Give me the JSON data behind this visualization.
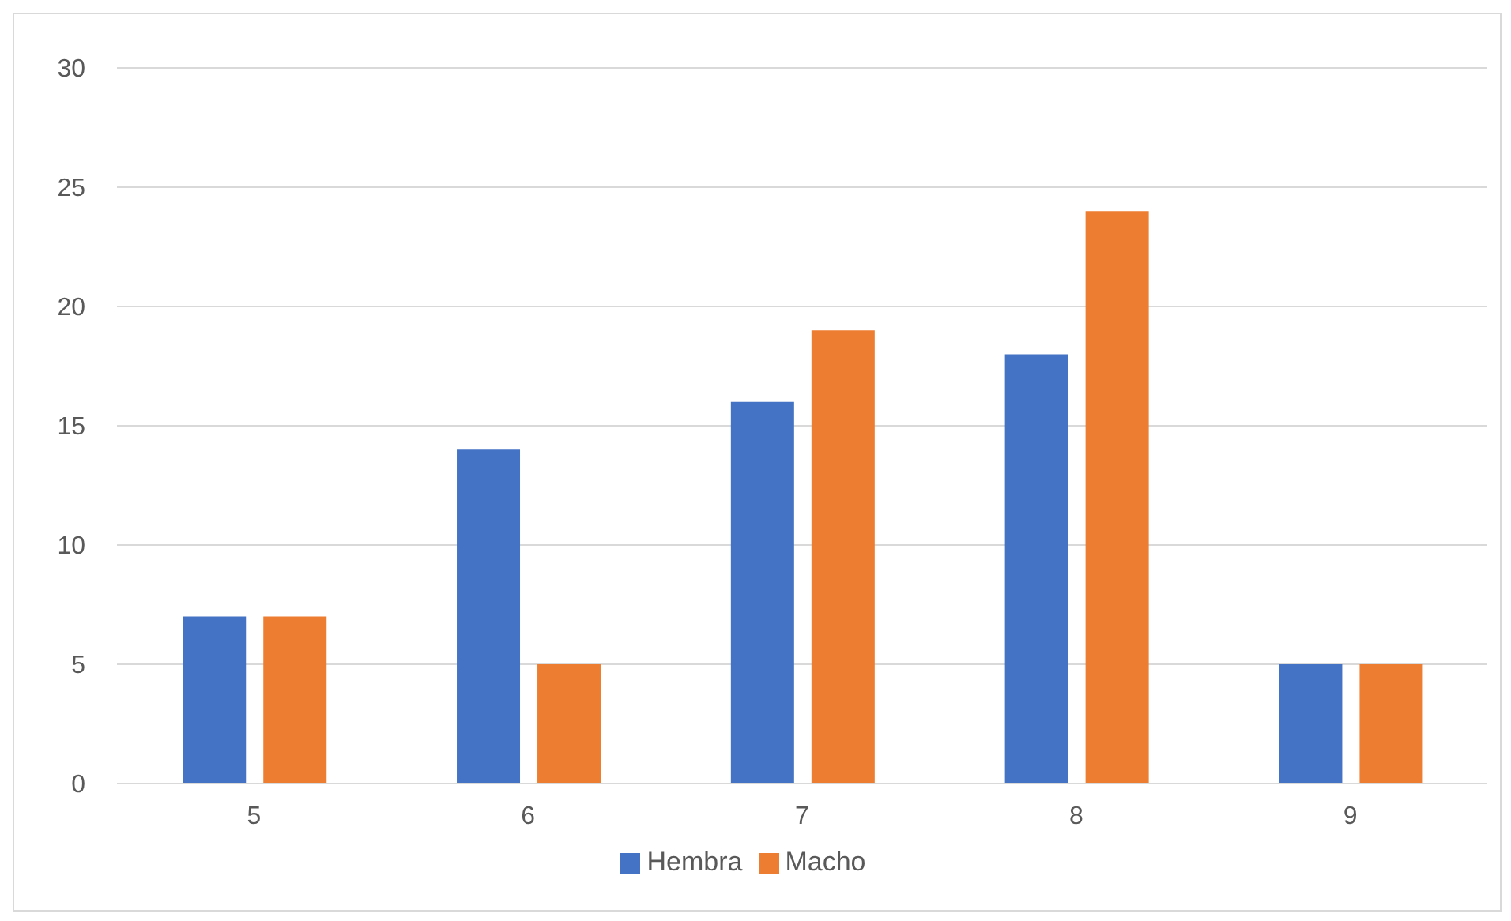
{
  "chart_data": {
    "type": "bar",
    "categories": [
      "5",
      "6",
      "7",
      "8",
      "9"
    ],
    "series": [
      {
        "name": "Hembra",
        "color": "#4472c4",
        "values": [
          7,
          14,
          16,
          18,
          5
        ]
      },
      {
        "name": "Macho",
        "color": "#ed7d31",
        "values": [
          7,
          5,
          19,
          24,
          5
        ]
      }
    ],
    "ylim": [
      0,
      30
    ],
    "yticks": [
      0,
      5,
      10,
      15,
      20,
      25,
      30
    ],
    "grid": "y",
    "legend": "bottom"
  }
}
